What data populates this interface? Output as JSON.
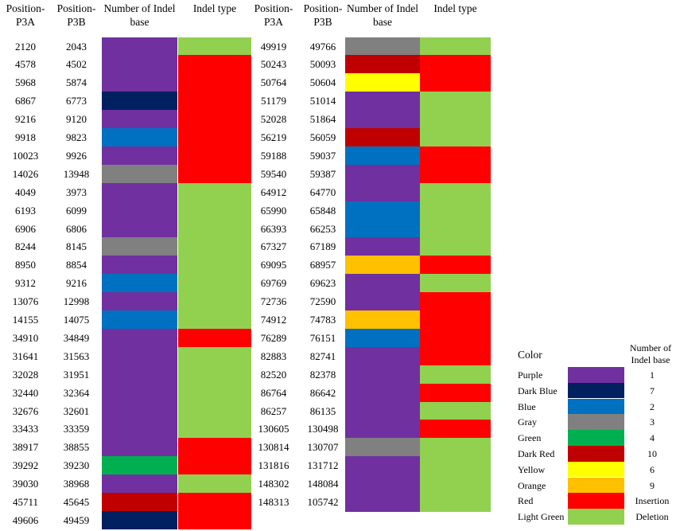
{
  "headers": {
    "pos_a": "Position-P3A",
    "pos_b": "Position-P3B",
    "num_indel": "Number of Indel base",
    "indel_type": "Indel type"
  },
  "colors": {
    "purple": "#7030A0",
    "darkblue": "#002060",
    "blue": "#0070C0",
    "gray": "#808080",
    "green": "#00B050",
    "darkred": "#C00000",
    "yellow": "#FFFF00",
    "orange": "#FFC000",
    "red": "#FF0000",
    "lightgreen": "#92D050"
  },
  "table_left": {
    "rows": [
      {
        "a": "2120",
        "b": "2043",
        "base": "purple",
        "type": "lightgreen"
      },
      {
        "a": "4578",
        "b": "4502",
        "base": "purple",
        "type": "red"
      },
      {
        "a": "5968",
        "b": "5874",
        "base": "purple",
        "type": "red"
      },
      {
        "a": "6867",
        "b": "6773",
        "base": "darkblue",
        "type": "red"
      },
      {
        "a": "9216",
        "b": "9120",
        "base": "purple",
        "type": "red"
      },
      {
        "a": "9918",
        "b": "9823",
        "base": "blue",
        "type": "red"
      },
      {
        "a": "10023",
        "b": "9926",
        "base": "purple",
        "type": "red"
      },
      {
        "a": "14026",
        "b": "13948",
        "base": "gray",
        "type": "red"
      },
      {
        "a": "4049",
        "b": "3973",
        "base": "purple",
        "type": "lightgreen"
      },
      {
        "a": "6193",
        "b": "6099",
        "base": "purple",
        "type": "lightgreen"
      },
      {
        "a": "6906",
        "b": "6806",
        "base": "purple",
        "type": "lightgreen"
      },
      {
        "a": "8244",
        "b": "8145",
        "base": "gray",
        "type": "lightgreen"
      },
      {
        "a": "8950",
        "b": "8854",
        "base": "purple",
        "type": "lightgreen"
      },
      {
        "a": "9312",
        "b": "9216",
        "base": "blue",
        "type": "lightgreen"
      },
      {
        "a": "13076",
        "b": "12998",
        "base": "purple",
        "type": "lightgreen"
      },
      {
        "a": "14155",
        "b": "14075",
        "base": "blue",
        "type": "lightgreen"
      },
      {
        "a": "34910",
        "b": "34849",
        "base": "purple",
        "type": "red"
      },
      {
        "a": "31641",
        "b": "31563",
        "base": "purple",
        "type": "lightgreen"
      },
      {
        "a": "32028",
        "b": "31951",
        "base": "purple",
        "type": "lightgreen"
      },
      {
        "a": "32440",
        "b": "32364",
        "base": "purple",
        "type": "lightgreen"
      },
      {
        "a": "32676",
        "b": "32601",
        "base": "purple",
        "type": "lightgreen"
      },
      {
        "a": "33433",
        "b": "33359",
        "base": "purple",
        "type": "lightgreen"
      },
      {
        "a": "38917",
        "b": "38855",
        "base": "purple",
        "type": "red"
      },
      {
        "a": "39292",
        "b": "39230",
        "base": "green",
        "type": "red"
      },
      {
        "a": "39030",
        "b": "38968",
        "base": "purple",
        "type": "lightgreen"
      },
      {
        "a": "45711",
        "b": "45645",
        "base": "darkred",
        "type": "red"
      },
      {
        "a": "49606",
        "b": "49459",
        "base": "darkblue",
        "type": "red"
      }
    ]
  },
  "table_right": {
    "rows": [
      {
        "a": "49919",
        "b": "49766",
        "base": "gray",
        "type": "lightgreen"
      },
      {
        "a": "50243",
        "b": "50093",
        "base": "darkred",
        "type": "red"
      },
      {
        "a": "50764",
        "b": "50604",
        "base": "yellow",
        "type": "red"
      },
      {
        "a": "51179",
        "b": "51014",
        "base": "purple",
        "type": "lightgreen"
      },
      {
        "a": "52028",
        "b": "51864",
        "base": "purple",
        "type": "lightgreen"
      },
      {
        "a": "56219",
        "b": "56059",
        "base": "darkred",
        "type": "lightgreen"
      },
      {
        "a": "59188",
        "b": "59037",
        "base": "blue",
        "type": "red"
      },
      {
        "a": "59540",
        "b": "59387",
        "base": "purple",
        "type": "red"
      },
      {
        "a": "64912",
        "b": "64770",
        "base": "purple",
        "type": "lightgreen"
      },
      {
        "a": "65990",
        "b": "65848",
        "base": "blue",
        "type": "lightgreen"
      },
      {
        "a": "66393",
        "b": "66253",
        "base": "blue",
        "type": "lightgreen"
      },
      {
        "a": "67327",
        "b": "67189",
        "base": "purple",
        "type": "lightgreen"
      },
      {
        "a": "69095",
        "b": "68957",
        "base": "orange",
        "type": "red"
      },
      {
        "a": "69769",
        "b": "69623",
        "base": "purple",
        "type": "lightgreen"
      },
      {
        "a": "72736",
        "b": "72590",
        "base": "purple",
        "type": "red"
      },
      {
        "a": "74912",
        "b": "74783",
        "base": "orange",
        "type": "red"
      },
      {
        "a": "76289",
        "b": "76151",
        "base": "blue",
        "type": "red"
      },
      {
        "a": "82883",
        "b": "82741",
        "base": "purple",
        "type": "red"
      },
      {
        "a": "82520",
        "b": "82378",
        "base": "purple",
        "type": "lightgreen"
      },
      {
        "a": "86764",
        "b": "86642",
        "base": "purple",
        "type": "red"
      },
      {
        "a": "86257",
        "b": "86135",
        "base": "purple",
        "type": "lightgreen"
      },
      {
        "a": "130605",
        "b": "130498",
        "base": "purple",
        "type": "red"
      },
      {
        "a": "130814",
        "b": "130707",
        "base": "gray",
        "type": "lightgreen"
      },
      {
        "a": "131816",
        "b": "131712",
        "base": "purple",
        "type": "lightgreen"
      },
      {
        "a": "148302",
        "b": "148084",
        "base": "purple",
        "type": "lightgreen"
      },
      {
        "a": "148313",
        "b": "105742",
        "base": "purple",
        "type": "lightgreen"
      }
    ]
  },
  "legend": {
    "title": "Color",
    "value_header": "Number of Indel base",
    "items": [
      {
        "label": "Purple",
        "color": "purple",
        "value": "1"
      },
      {
        "label": "Dark Blue",
        "color": "darkblue",
        "value": "7"
      },
      {
        "label": "Blue",
        "color": "blue",
        "value": "2"
      },
      {
        "label": "Gray",
        "color": "gray",
        "value": "3"
      },
      {
        "label": "Green",
        "color": "green",
        "value": "4"
      },
      {
        "label": "Dark Red",
        "color": "darkred",
        "value": "10"
      },
      {
        "label": "Yellow",
        "color": "yellow",
        "value": "6"
      },
      {
        "label": "Orange",
        "color": "orange",
        "value": "9"
      },
      {
        "label": "Red",
        "color": "red",
        "value": "Insertion"
      },
      {
        "label": "Light Green",
        "color": "lightgreen",
        "value": "Deletion"
      }
    ]
  }
}
